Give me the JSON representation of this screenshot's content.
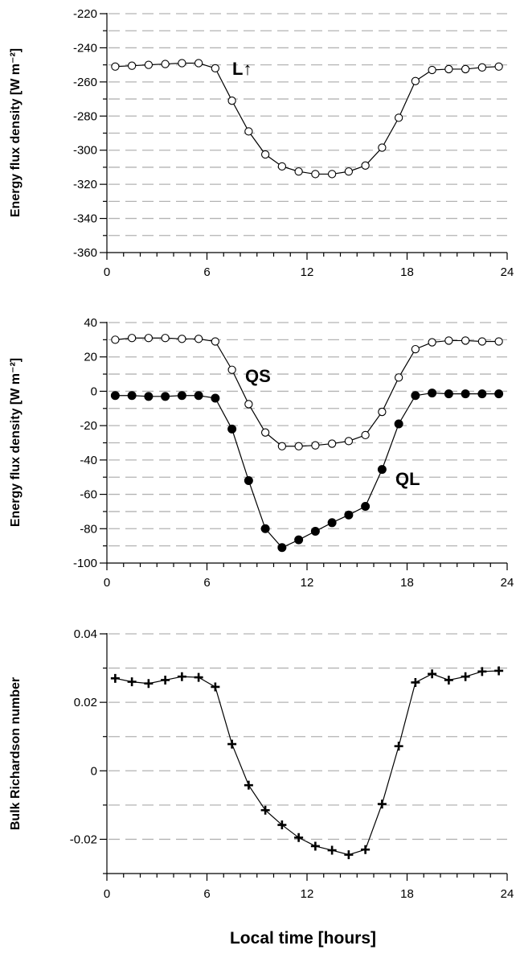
{
  "chart_data": [
    {
      "type": "line",
      "ylabel": "Energy flux density [W m⁻²]",
      "xlim": [
        0,
        24
      ],
      "ylim": [
        -360,
        -220
      ],
      "xticks": [
        0,
        6,
        12,
        18,
        24
      ],
      "yticks": [
        -220,
        -240,
        -260,
        -280,
        -300,
        -320,
        -340,
        -360
      ],
      "grid": "horizontal dashed",
      "series": [
        {
          "name": "L↑",
          "marker": "open-circle",
          "x": [
            0.5,
            1.5,
            2.5,
            3.5,
            4.5,
            5.5,
            6.5,
            7.5,
            8.5,
            9.5,
            10.5,
            11.5,
            12.5,
            13.5,
            14.5,
            15.5,
            16.5,
            17.5,
            18.5,
            19.5,
            20.5,
            21.5,
            22.5,
            23.5
          ],
          "y": [
            -251,
            -250.5,
            -250,
            -249.5,
            -249,
            -249,
            -252,
            -271,
            -289,
            -302.5,
            -309.5,
            -312.5,
            -314,
            -314,
            -312.5,
            -309,
            -298.5,
            -281,
            -259.5,
            -253,
            -252.5,
            -252.5,
            -251.5,
            -251
          ]
        }
      ]
    },
    {
      "type": "line",
      "ylabel": "Energy flux density [W m⁻²]",
      "xlim": [
        0,
        24
      ],
      "ylim": [
        -100,
        40
      ],
      "xticks": [
        0,
        6,
        12,
        18,
        24
      ],
      "yticks": [
        40,
        20,
        0,
        -20,
        -40,
        -60,
        -80,
        -100
      ],
      "grid": "horizontal dashed",
      "series": [
        {
          "name": "QS",
          "marker": "open-circle",
          "x": [
            0.5,
            1.5,
            2.5,
            3.5,
            4.5,
            5.5,
            6.5,
            7.5,
            8.5,
            9.5,
            10.5,
            11.5,
            12.5,
            13.5,
            14.5,
            15.5,
            16.5,
            17.5,
            18.5,
            19.5,
            20.5,
            21.5,
            22.5,
            23.5
          ],
          "y": [
            30,
            31,
            31,
            31,
            30.5,
            30.5,
            29,
            12.5,
            -7.5,
            -24,
            -32,
            -32,
            -31.5,
            -30.5,
            -29,
            -25.5,
            -12,
            8,
            24.5,
            28.5,
            29.5,
            29.5,
            29,
            29
          ]
        },
        {
          "name": "QL",
          "marker": "filled-circle",
          "x": [
            0.5,
            1.5,
            2.5,
            3.5,
            4.5,
            5.5,
            6.5,
            7.5,
            8.5,
            9.5,
            10.5,
            11.5,
            12.5,
            13.5,
            14.5,
            15.5,
            16.5,
            17.5,
            18.5,
            19.5,
            20.5,
            21.5,
            22.5,
            23.5
          ],
          "y": [
            -2.5,
            -2.5,
            -3,
            -3,
            -2.5,
            -2.5,
            -4,
            -22,
            -52,
            -80,
            -91,
            -86.5,
            -81.5,
            -76.5,
            -72,
            -67,
            -45.5,
            -19,
            -2.5,
            -1,
            -1.5,
            -1.5,
            -1.5,
            -1.5
          ]
        }
      ]
    },
    {
      "type": "line",
      "ylabel": "Bulk Richardson number",
      "xlabel": "Local time [hours]",
      "xlim": [
        0,
        24
      ],
      "ylim": [
        -0.03,
        0.04
      ],
      "xticks": [
        0,
        6,
        12,
        18,
        24
      ],
      "yticks": [
        0.04,
        0.02,
        0,
        -0.02
      ],
      "ytick_labels": [
        "0.04",
        "0.02",
        "0",
        "-0.02"
      ],
      "grid": "horizontal dashed",
      "series": [
        {
          "marker": "plus",
          "x": [
            0.5,
            1.5,
            2.5,
            3.5,
            4.5,
            5.5,
            6.5,
            7.5,
            8.5,
            9.5,
            10.5,
            11.5,
            12.5,
            13.5,
            14.5,
            15.5,
            16.5,
            17.5,
            18.5,
            19.5,
            20.5,
            21.5,
            22.5,
            23.5
          ],
          "y": [
            0.027,
            0.026,
            0.0255,
            0.0265,
            0.0275,
            0.0273,
            0.0245,
            0.0078,
            -0.0042,
            -0.0115,
            -0.0158,
            -0.0195,
            -0.022,
            -0.0232,
            -0.0245,
            -0.023,
            -0.0097,
            0.0072,
            0.0258,
            0.0283,
            0.0265,
            0.0275,
            0.029,
            0.0292
          ]
        }
      ]
    }
  ]
}
